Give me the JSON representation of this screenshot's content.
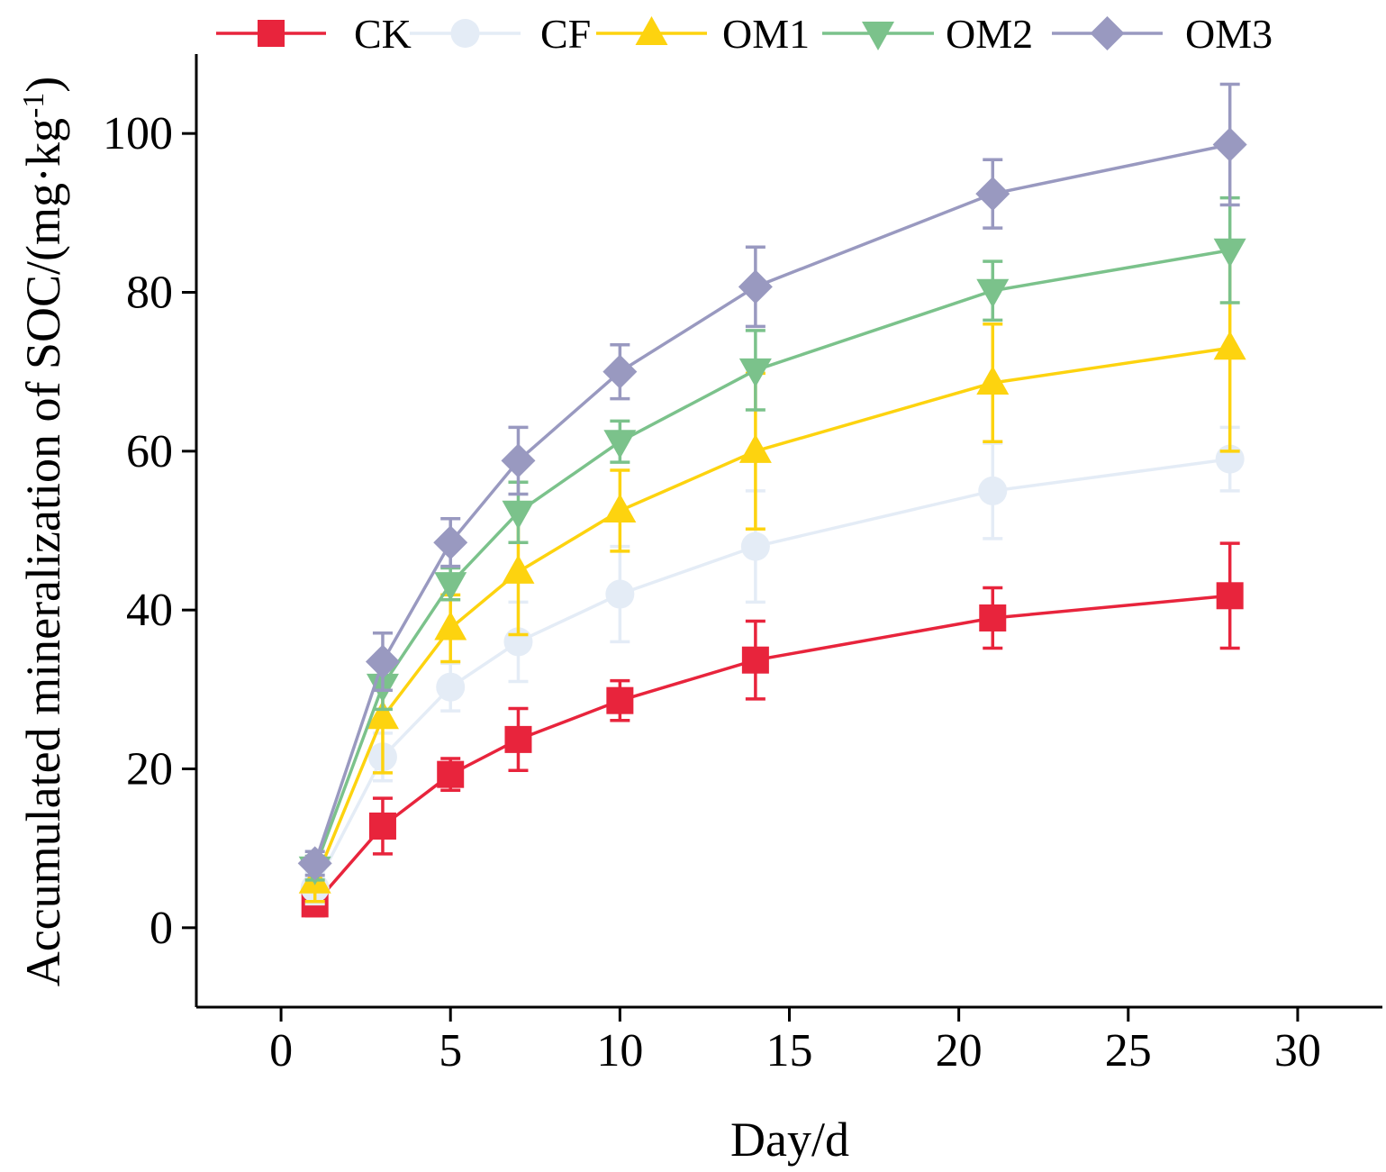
{
  "chart_data": {
    "type": "line",
    "xlabel": "Day/d",
    "ylabel_main": "Accumulated mineralization of SOC/(mg·kg",
    "ylabel_sup": "-1",
    "ylabel_close": ")",
    "xlim": [
      -2.5,
      32.5
    ],
    "ylim": [
      -10,
      110
    ],
    "xticks": [
      0,
      5,
      10,
      15,
      20,
      25,
      30
    ],
    "yticks": [
      0,
      20,
      40,
      60,
      80,
      100
    ],
    "x": [
      1,
      3,
      5,
      7,
      10,
      14,
      21,
      28
    ],
    "legend_position": "top",
    "series": [
      {
        "name": "CK",
        "color": "#E8243C",
        "marker": "square",
        "values": [
          3.0,
          12.8,
          19.3,
          23.7,
          28.6,
          33.7,
          39.0,
          41.8
        ],
        "errors": [
          1.5,
          3.5,
          2.0,
          3.9,
          2.5,
          4.9,
          3.8,
          6.6
        ]
      },
      {
        "name": "CF",
        "color": "#E4ECF6",
        "marker": "circle",
        "values": [
          5.0,
          21.5,
          30.3,
          36.0,
          42.0,
          48.0,
          55.0,
          59.0
        ],
        "errors": [
          2.0,
          3.0,
          3.0,
          5.0,
          6.0,
          7.0,
          6.0,
          4.0
        ]
      },
      {
        "name": "OM1",
        "color": "#FDD30F",
        "marker": "triangle-up",
        "values": [
          5.8,
          26.5,
          37.7,
          44.8,
          52.5,
          60.0,
          68.6,
          73.0
        ],
        "errors": [
          2.5,
          7.0,
          4.2,
          7.9,
          5.1,
          9.8,
          7.4,
          13.0
        ]
      },
      {
        "name": "OM2",
        "color": "#7BC28B",
        "marker": "triangle-down",
        "values": [
          7.5,
          30.5,
          43.3,
          52.3,
          61.2,
          70.2,
          80.2,
          85.3
        ],
        "errors": [
          1.5,
          3.0,
          2.0,
          3.8,
          2.6,
          5.0,
          3.7,
          6.6
        ]
      },
      {
        "name": "OM3",
        "color": "#9999C0",
        "marker": "diamond",
        "values": [
          8.1,
          33.5,
          48.5,
          58.8,
          70.0,
          80.7,
          92.4,
          98.6
        ],
        "errors": [
          1.5,
          3.6,
          3.0,
          4.2,
          3.4,
          5.0,
          4.3,
          7.6
        ]
      }
    ]
  }
}
